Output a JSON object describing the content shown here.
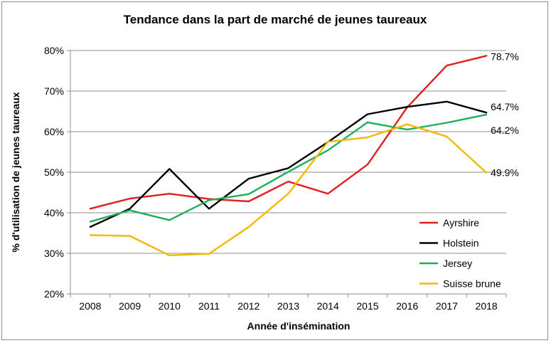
{
  "chart_data": {
    "type": "line",
    "title": "Tendance dans la part de marché de jeunes taureaux",
    "xlabel": "Année d'insémination",
    "ylabel": "% d'utilisation de jeunes taureaux",
    "categories": [
      "2008",
      "2009",
      "2010",
      "2011",
      "2012",
      "2013",
      "2014",
      "2015",
      "2016",
      "2017",
      "2018"
    ],
    "ylim": [
      20,
      80
    ],
    "yticks": [
      20,
      30,
      40,
      50,
      60,
      70,
      80
    ],
    "ytick_labels": [
      "20%",
      "30%",
      "40%",
      "50%",
      "60%",
      "70%",
      "80%"
    ],
    "grid": true,
    "legend_position": "bottom-right",
    "series": [
      {
        "name": "Ayrshire",
        "color": "#e02020",
        "values": [
          41.0,
          43.5,
          44.7,
          43.4,
          42.8,
          47.7,
          44.7,
          51.9,
          66.0,
          76.3,
          78.7
        ],
        "end_label": "78.7%"
      },
      {
        "name": "Holstein",
        "color": "#000000",
        "values": [
          36.5,
          41.0,
          50.8,
          41.0,
          48.4,
          51.0,
          57.4,
          64.3,
          66.1,
          67.4,
          64.7
        ],
        "end_label": "64.7%"
      },
      {
        "name": "Jersey",
        "color": "#1fae5a",
        "values": [
          37.8,
          40.6,
          38.2,
          43.1,
          44.6,
          50.1,
          55.4,
          62.3,
          60.5,
          62.2,
          64.2
        ],
        "end_label": "64.2%"
      },
      {
        "name": "Suisse brune",
        "color": "#f5b800",
        "values": [
          34.5,
          34.3,
          29.5,
          29.9,
          36.5,
          44.7,
          57.5,
          58.6,
          61.8,
          58.8,
          49.9
        ],
        "end_label": "49.9%"
      }
    ]
  }
}
